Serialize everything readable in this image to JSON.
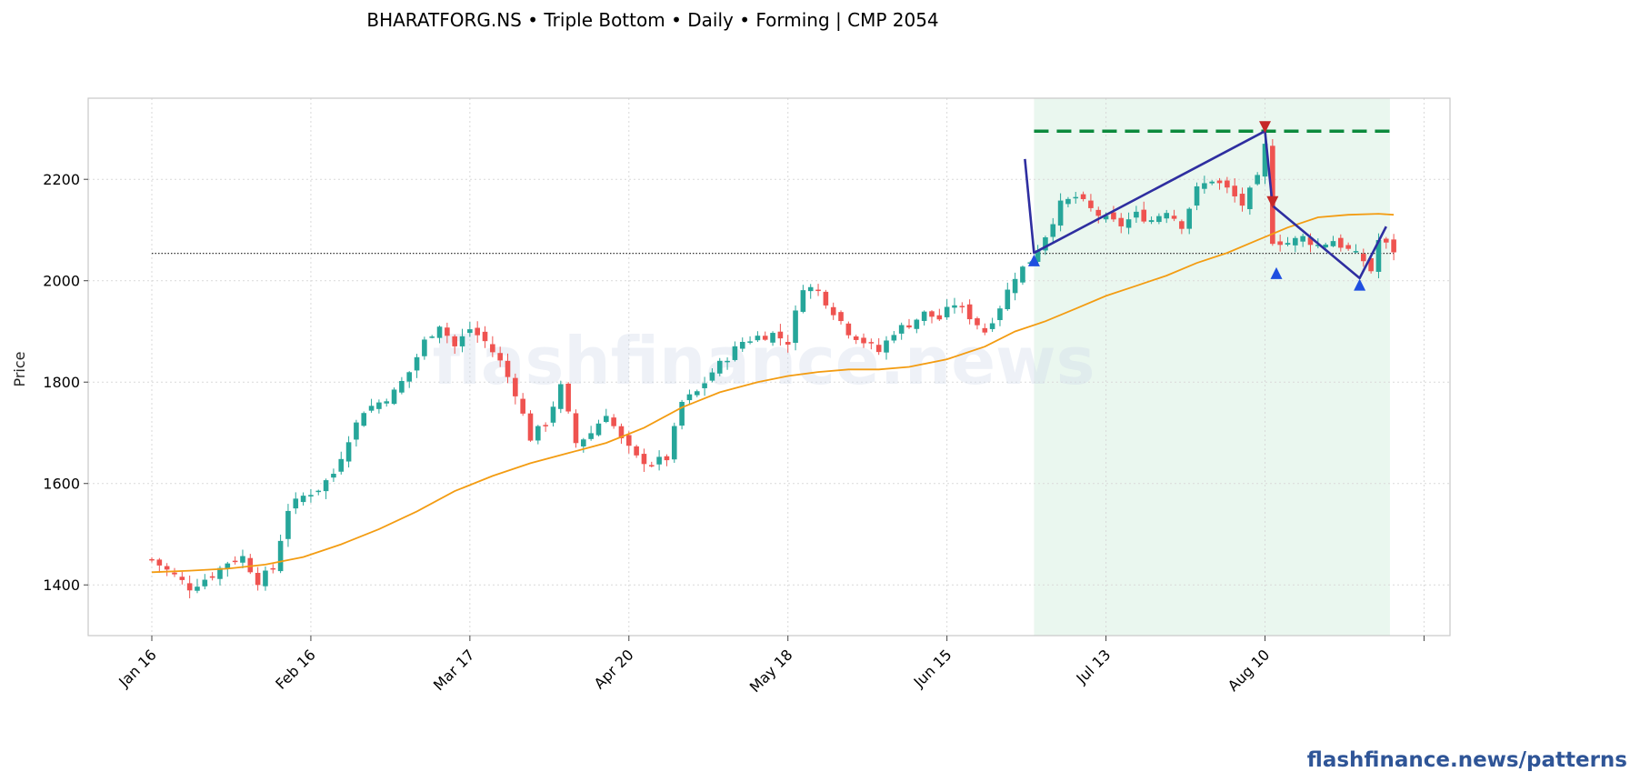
{
  "chart_data": {
    "type": "candlestick",
    "title": "BHARATFORG.NS  •  Triple Bottom  •  Daily  •  Forming  |  CMP 2054",
    "ylabel": "Price",
    "xlabel": "",
    "ylim": [
      1300,
      2360
    ],
    "yticks": [
      1400,
      1600,
      1800,
      2000,
      2200
    ],
    "xtick_labels": [
      "Jan 16",
      "Feb 16",
      "Mar 17",
      "Apr 20",
      "May 18",
      "Jun 15",
      "Jul 13",
      "Aug 10"
    ],
    "xtick_index": [
      0,
      21,
      42,
      63,
      84,
      105,
      126,
      147,
      168
    ],
    "n_bars": 165,
    "grid": true,
    "up_color": "#26a69a",
    "down_color": "#ef5350",
    "sma_color": "#f39c12",
    "pattern_color": "#2e2ea0",
    "target_color": "#0b8a3c",
    "zone_color": "#e3f4ea",
    "reference_level": 2054,
    "target_level": 2295,
    "pattern_zone": [
      116.5,
      163.5
    ],
    "anchors": [
      {
        "name": "start",
        "x": 115.3,
        "y": 2240
      },
      {
        "name": "low1",
        "x": 116.5,
        "y": 2055
      },
      {
        "name": "peak1",
        "x": 147,
        "y": 2295
      },
      {
        "name": "low2",
        "x": 148,
        "y": 2148
      },
      {
        "name": "low3",
        "x": 159.5,
        "y": 2005
      },
      {
        "name": "end",
        "x": 163,
        "y": 2107
      }
    ],
    "markers": [
      {
        "type": "up-triangle",
        "x": 116.5,
        "y": 2040,
        "color": "#1f4fe0"
      },
      {
        "type": "down-triangle",
        "x": 147,
        "y": 2303,
        "color": "#c62828"
      },
      {
        "type": "down-triangle",
        "x": 148,
        "y": 2155,
        "color": "#c62828"
      },
      {
        "type": "up-triangle",
        "x": 148.5,
        "y": 2015,
        "color": "#1f4fe0"
      },
      {
        "type": "up-triangle",
        "x": 159.5,
        "y": 1992,
        "color": "#1f4fe0"
      }
    ],
    "sma_points": [
      [
        0,
        1425
      ],
      [
        5,
        1428
      ],
      [
        10,
        1432
      ],
      [
        15,
        1440
      ],
      [
        20,
        1455
      ],
      [
        25,
        1480
      ],
      [
        30,
        1510
      ],
      [
        35,
        1545
      ],
      [
        40,
        1585
      ],
      [
        45,
        1615
      ],
      [
        50,
        1640
      ],
      [
        55,
        1660
      ],
      [
        60,
        1680
      ],
      [
        65,
        1710
      ],
      [
        70,
        1750
      ],
      [
        75,
        1780
      ],
      [
        80,
        1800
      ],
      [
        84,
        1812
      ],
      [
        88,
        1820
      ],
      [
        92,
        1825
      ],
      [
        96,
        1825
      ],
      [
        100,
        1830
      ],
      [
        105,
        1845
      ],
      [
        110,
        1870
      ],
      [
        114,
        1900
      ],
      [
        118,
        1920
      ],
      [
        122,
        1945
      ],
      [
        126,
        1970
      ],
      [
        130,
        1990
      ],
      [
        134,
        2010
      ],
      [
        138,
        2035
      ],
      [
        142,
        2055
      ],
      [
        146,
        2080
      ],
      [
        150,
        2105
      ],
      [
        154,
        2125
      ],
      [
        158,
        2130
      ],
      [
        162,
        2132
      ],
      [
        164,
        2130
      ]
    ],
    "close_path": [
      [
        0,
        1450
      ],
      [
        3,
        1418
      ],
      [
        5,
        1395
      ],
      [
        8,
        1420
      ],
      [
        10,
        1445
      ],
      [
        12,
        1455
      ],
      [
        14,
        1408
      ],
      [
        15,
        1420
      ],
      [
        16,
        1432
      ],
      [
        18,
        1550
      ],
      [
        20,
        1575
      ],
      [
        22,
        1590
      ],
      [
        24,
        1620
      ],
      [
        26,
        1690
      ],
      [
        28,
        1745
      ],
      [
        30,
        1760
      ],
      [
        32,
        1780
      ],
      [
        34,
        1820
      ],
      [
        36,
        1880
      ],
      [
        38,
        1915
      ],
      [
        40,
        1870
      ],
      [
        42,
        1905
      ],
      [
        44,
        1880
      ],
      [
        46,
        1840
      ],
      [
        48,
        1780
      ],
      [
        50,
        1690
      ],
      [
        52,
        1720
      ],
      [
        54,
        1790
      ],
      [
        56,
        1680
      ],
      [
        58,
        1700
      ],
      [
        60,
        1740
      ],
      [
        62,
        1685
      ],
      [
        64,
        1650
      ],
      [
        66,
        1640
      ],
      [
        68,
        1650
      ],
      [
        70,
        1760
      ],
      [
        72,
        1780
      ],
      [
        74,
        1820
      ],
      [
        76,
        1850
      ],
      [
        78,
        1880
      ],
      [
        80,
        1890
      ],
      [
        82,
        1895
      ],
      [
        84,
        1880
      ],
      [
        86,
        1990
      ],
      [
        88,
        1980
      ],
      [
        90,
        1940
      ],
      [
        92,
        1900
      ],
      [
        94,
        1880
      ],
      [
        96,
        1860
      ],
      [
        98,
        1900
      ],
      [
        100,
        1915
      ],
      [
        102,
        1935
      ],
      [
        104,
        1925
      ],
      [
        106,
        1955
      ],
      [
        108,
        1930
      ],
      [
        110,
        1900
      ],
      [
        112,
        1950
      ],
      [
        114,
        2010
      ],
      [
        116,
        2040
      ],
      [
        118,
        2090
      ],
      [
        120,
        2150
      ],
      [
        122,
        2165
      ],
      [
        124,
        2140
      ],
      [
        126,
        2120
      ],
      [
        128,
        2110
      ],
      [
        130,
        2130
      ],
      [
        132,
        2120
      ],
      [
        134,
        2140
      ],
      [
        136,
        2110
      ],
      [
        138,
        2180
      ],
      [
        140,
        2200
      ],
      [
        142,
        2180
      ],
      [
        144,
        2150
      ],
      [
        146,
        2200
      ],
      [
        147,
        2265
      ],
      [
        148,
        2080
      ],
      [
        150,
        2075
      ],
      [
        152,
        2085
      ],
      [
        154,
        2070
      ],
      [
        156,
        2080
      ],
      [
        158,
        2060
      ],
      [
        160,
        2040
      ],
      [
        161,
        2020
      ],
      [
        162,
        2080
      ],
      [
        164,
        2060
      ]
    ]
  },
  "watermark": "flashfinance.news",
  "footer": "flashfinance.news/patterns"
}
